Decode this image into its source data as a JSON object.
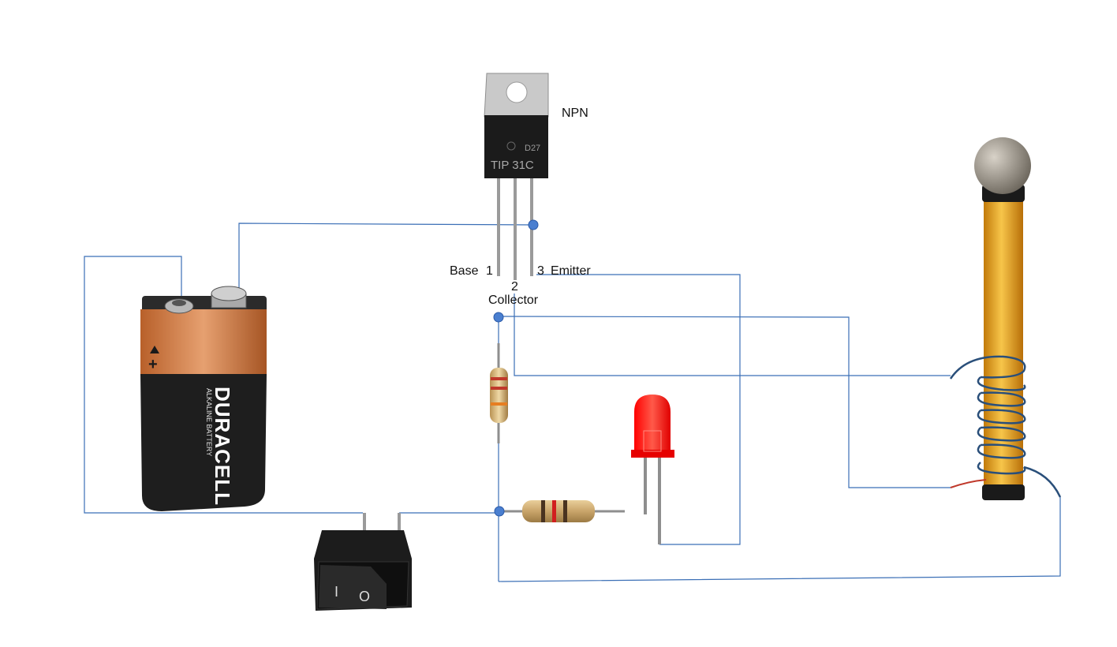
{
  "labels": {
    "transistor_type": "NPN",
    "transistor_part": "TIP 31C",
    "transistor_code": "D27",
    "pin1": "Base",
    "pin1_num": "1",
    "pin2_num": "2",
    "pin2": "Collector",
    "pin3_num": "3",
    "pin3": "Emitter"
  },
  "battery": {
    "brand": "DURACELL",
    "type": "ALKALINE BATTERY",
    "plus": "+"
  },
  "switch": {
    "on_mark": "I",
    "off_mark": "O"
  },
  "colors": {
    "wire": "#3b6fb6",
    "junction": "#4a7fd0",
    "led": "#ff1a1a",
    "coil_core": "#e8a21c",
    "coil_winding": "#2a4f7a",
    "battery_copper": "#c8743c",
    "battery_body": "#1e1e1e"
  }
}
